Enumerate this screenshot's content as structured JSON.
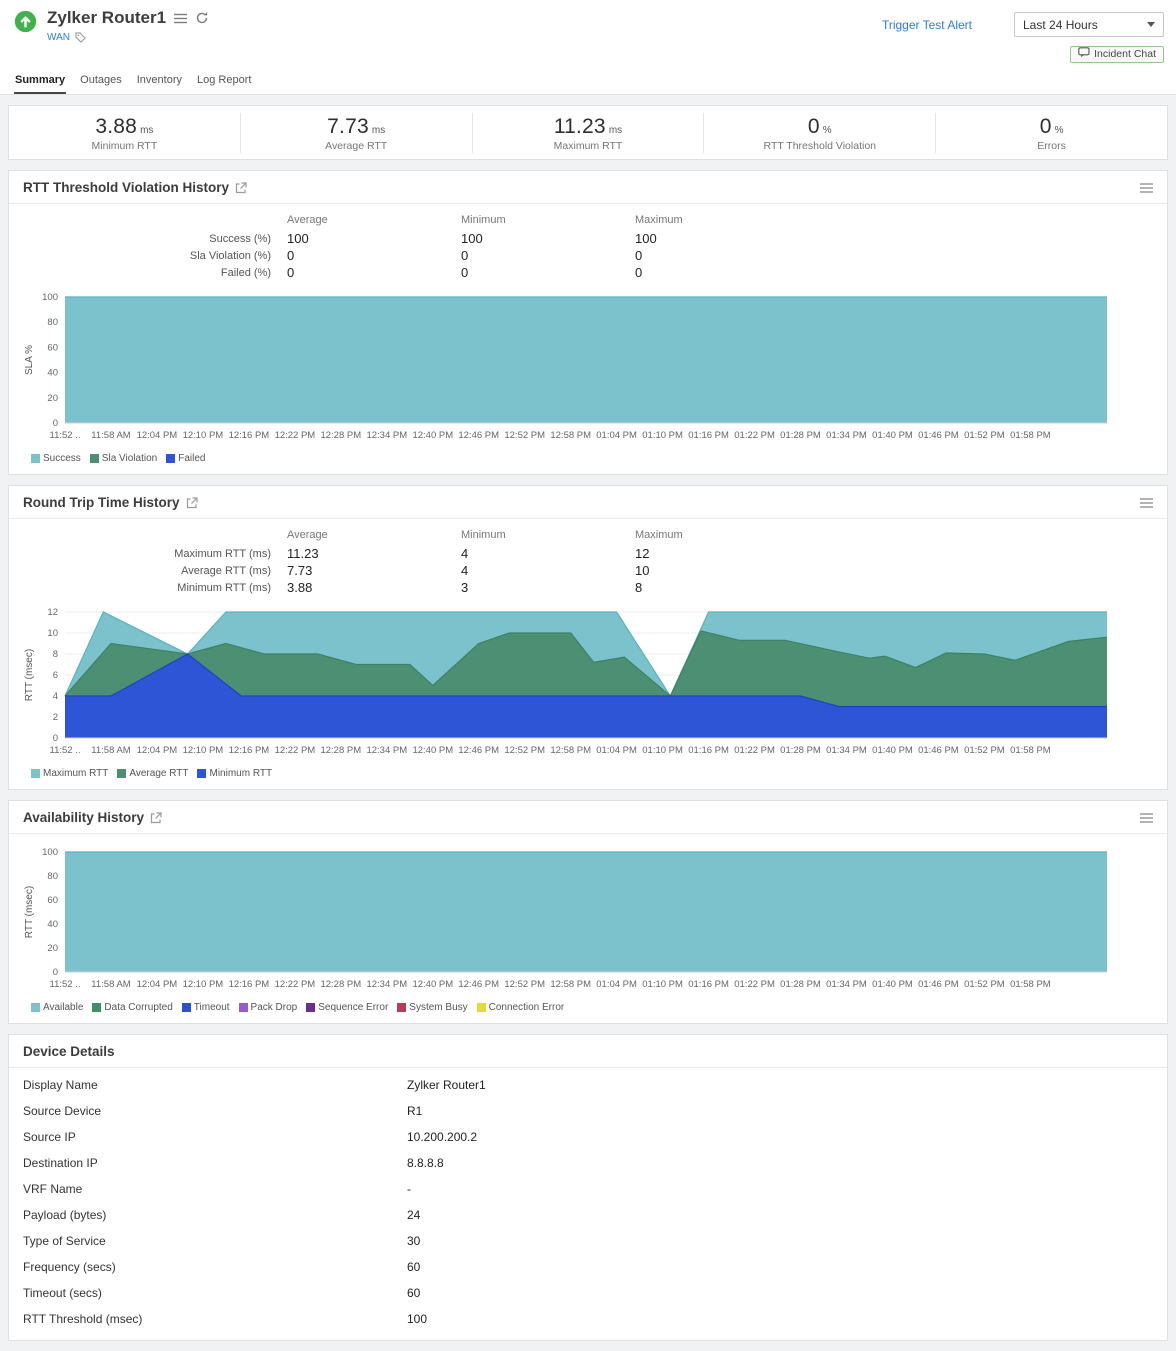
{
  "header": {
    "title": "Zylker Router1",
    "category": "WAN",
    "trigger_link": "Trigger Test Alert",
    "time_range": "Last 24 Hours",
    "incident_chat": "Incident Chat",
    "tabs": [
      "Summary",
      "Outages",
      "Inventory",
      "Log Report"
    ],
    "active_tab": "Summary",
    "status_color": "#3eb24b",
    "link_color": "#2a7de1"
  },
  "stats": [
    {
      "value": "3.88",
      "unit": "ms",
      "label": "Minimum RTT"
    },
    {
      "value": "7.73",
      "unit": "ms",
      "label": "Average RTT"
    },
    {
      "value": "11.23",
      "unit": "ms",
      "label": "Maximum RTT"
    },
    {
      "value": "0",
      "unit": "%",
      "label": "RTT Threshold Violation"
    },
    {
      "value": "0",
      "unit": "%",
      "label": "Errors"
    }
  ],
  "panels": {
    "sla": {
      "title": "RTT Threshold Violation History",
      "table": {
        "columns": [
          "Average",
          "Minimum",
          "Maximum"
        ],
        "rows": [
          {
            "label": "Success (%)",
            "values": [
              "100",
              "100",
              "100"
            ]
          },
          {
            "label": "Sla Violation (%)",
            "values": [
              "0",
              "0",
              "0"
            ]
          },
          {
            "label": "Failed (%)",
            "values": [
              "0",
              "0",
              "0"
            ]
          }
        ]
      }
    },
    "rtt": {
      "title": "Round Trip Time History",
      "table": {
        "columns": [
          "Average",
          "Minimum",
          "Maximum"
        ],
        "rows": [
          {
            "label": "Maximum RTT (ms)",
            "values": [
              "11.23",
              "4",
              "12"
            ]
          },
          {
            "label": "Average RTT (ms)",
            "values": [
              "7.73",
              "4",
              "10"
            ]
          },
          {
            "label": "Minimum RTT (ms)",
            "values": [
              "3.88",
              "3",
              "8"
            ]
          }
        ]
      }
    },
    "availability": {
      "title": "Availability History"
    },
    "device": {
      "title": "Device Details",
      "rows": [
        {
          "label": "Display Name",
          "value": "Zylker Router1"
        },
        {
          "label": "Source Device",
          "value": "R1"
        },
        {
          "label": "Source IP",
          "value": "10.200.200.2"
        },
        {
          "label": "Destination IP",
          "value": "8.8.8.8"
        },
        {
          "label": "VRF Name",
          "value": "-"
        },
        {
          "label": "Payload (bytes)",
          "value": "24"
        },
        {
          "label": "Type of Service",
          "value": "30"
        },
        {
          "label": "Frequency (secs)",
          "value": "60"
        },
        {
          "label": "Timeout (secs)",
          "value": "60"
        },
        {
          "label": "RTT Threshold (msec)",
          "value": "100"
        }
      ]
    }
  },
  "chart_data": [
    {
      "type": "area",
      "title": "RTT Threshold Violation History",
      "ylabel": "SLA %",
      "ylim": [
        0,
        100
      ],
      "yticks": [
        0,
        20,
        40,
        60,
        80,
        100
      ],
      "xlim": [
        0,
        136
      ],
      "grid": true,
      "legend_position": "bottom",
      "xticks": [
        {
          "t": 0,
          "label": "11:52 .."
        },
        {
          "t": 6,
          "label": "11:58 AM"
        },
        {
          "t": 12,
          "label": "12:04 PM"
        },
        {
          "t": 18,
          "label": "12:10 PM"
        },
        {
          "t": 24,
          "label": "12:16 PM"
        },
        {
          "t": 30,
          "label": "12:22 PM"
        },
        {
          "t": 36,
          "label": "12:28 PM"
        },
        {
          "t": 42,
          "label": "12:34 PM"
        },
        {
          "t": 48,
          "label": "12:40 PM"
        },
        {
          "t": 54,
          "label": "12:46 PM"
        },
        {
          "t": 60,
          "label": "12:52 PM"
        },
        {
          "t": 66,
          "label": "12:58 PM"
        },
        {
          "t": 72,
          "label": "01:04 PM"
        },
        {
          "t": 78,
          "label": "01:10 PM"
        },
        {
          "t": 84,
          "label": "01:16 PM"
        },
        {
          "t": 90,
          "label": "01:22 PM"
        },
        {
          "t": 96,
          "label": "01:28 PM"
        },
        {
          "t": 102,
          "label": "01:34 PM"
        },
        {
          "t": 108,
          "label": "01:40 PM"
        },
        {
          "t": 114,
          "label": "01:46 PM"
        },
        {
          "t": 120,
          "label": "01:52 PM"
        },
        {
          "t": 126,
          "label": "01:58 PM"
        }
      ],
      "series": [
        {
          "name": "Success",
          "color": "#7cc2cc",
          "stroke": "#5bb2bd",
          "points": [
            [
              0,
              100
            ],
            [
              136,
              100
            ]
          ]
        },
        {
          "name": "Sla Violation",
          "color": "#4d8f72",
          "stroke": "#3d8163",
          "points": [
            [
              0,
              0
            ],
            [
              136,
              0
            ]
          ]
        },
        {
          "name": "Failed",
          "color": "#2e55d5",
          "stroke": "#2343c0",
          "points": [
            [
              0,
              0
            ],
            [
              136,
              0
            ]
          ]
        }
      ]
    },
    {
      "type": "area",
      "title": "Round Trip Time History",
      "ylabel": "RTT (msec)",
      "ylim": [
        0,
        12
      ],
      "yticks": [
        0,
        2,
        4,
        6,
        8,
        10,
        12
      ],
      "xlim": [
        0,
        136
      ],
      "grid": true,
      "legend_position": "bottom",
      "xticks": [
        {
          "t": 0,
          "label": "11:52 .."
        },
        {
          "t": 6,
          "label": "11:58 AM"
        },
        {
          "t": 12,
          "label": "12:04 PM"
        },
        {
          "t": 18,
          "label": "12:10 PM"
        },
        {
          "t": 24,
          "label": "12:16 PM"
        },
        {
          "t": 30,
          "label": "12:22 PM"
        },
        {
          "t": 36,
          "label": "12:28 PM"
        },
        {
          "t": 42,
          "label": "12:34 PM"
        },
        {
          "t": 48,
          "label": "12:40 PM"
        },
        {
          "t": 54,
          "label": "12:46 PM"
        },
        {
          "t": 60,
          "label": "12:52 PM"
        },
        {
          "t": 66,
          "label": "12:58 PM"
        },
        {
          "t": 72,
          "label": "01:04 PM"
        },
        {
          "t": 78,
          "label": "01:10 PM"
        },
        {
          "t": 84,
          "label": "01:16 PM"
        },
        {
          "t": 90,
          "label": "01:22 PM"
        },
        {
          "t": 96,
          "label": "01:28 PM"
        },
        {
          "t": 102,
          "label": "01:34 PM"
        },
        {
          "t": 108,
          "label": "01:40 PM"
        },
        {
          "t": 114,
          "label": "01:46 PM"
        },
        {
          "t": 120,
          "label": "01:52 PM"
        },
        {
          "t": 126,
          "label": "01:58 PM"
        }
      ],
      "series": [
        {
          "name": "Maximum RTT",
          "color": "#7cc2cc",
          "stroke": "#5bb2bd",
          "points": [
            [
              0,
              4
            ],
            [
              5,
              12
            ],
            [
              16,
              8
            ],
            [
              21,
              12
            ],
            [
              72,
              12
            ],
            [
              79,
              4
            ],
            [
              84,
              12
            ],
            [
              136,
              12
            ]
          ]
        },
        {
          "name": "Average RTT",
          "color": "#4d8f72",
          "stroke": "#3d8163",
          "points": [
            [
              0,
              4
            ],
            [
              6,
              9
            ],
            [
              16,
              8
            ],
            [
              21,
              9
            ],
            [
              26,
              8
            ],
            [
              33,
              8
            ],
            [
              38,
              7
            ],
            [
              45,
              7
            ],
            [
              48,
              5
            ],
            [
              54,
              9
            ],
            [
              58,
              10
            ],
            [
              66,
              10
            ],
            [
              69,
              7.2
            ],
            [
              73,
              7.7
            ],
            [
              79,
              4
            ],
            [
              83,
              10.2
            ],
            [
              88,
              9.3
            ],
            [
              94,
              9.3
            ],
            [
              101,
              8.2
            ],
            [
              105,
              7.6
            ],
            [
              107,
              7.8
            ],
            [
              111,
              6.7
            ],
            [
              115,
              8.1
            ],
            [
              120,
              8
            ],
            [
              124,
              7.4
            ],
            [
              131,
              9.2
            ],
            [
              136,
              9.6
            ]
          ]
        },
        {
          "name": "Minimum RTT",
          "color": "#2e55d5",
          "stroke": "#2343c0",
          "points": [
            [
              0,
              4
            ],
            [
              6,
              4
            ],
            [
              16,
              8
            ],
            [
              23,
              4
            ],
            [
              96,
              4
            ],
            [
              101,
              3
            ],
            [
              136,
              3
            ]
          ]
        }
      ]
    },
    {
      "type": "area",
      "title": "Availability History",
      "ylabel": "RTT (msec)",
      "ylim": [
        0,
        100
      ],
      "yticks": [
        0,
        20,
        40,
        60,
        80,
        100
      ],
      "xlim": [
        0,
        136
      ],
      "grid": true,
      "legend_position": "bottom",
      "xticks": [
        {
          "t": 0,
          "label": "11:52 .."
        },
        {
          "t": 6,
          "label": "11:58 AM"
        },
        {
          "t": 12,
          "label": "12:04 PM"
        },
        {
          "t": 18,
          "label": "12:10 PM"
        },
        {
          "t": 24,
          "label": "12:16 PM"
        },
        {
          "t": 30,
          "label": "12:22 PM"
        },
        {
          "t": 36,
          "label": "12:28 PM"
        },
        {
          "t": 42,
          "label": "12:34 PM"
        },
        {
          "t": 48,
          "label": "12:40 PM"
        },
        {
          "t": 54,
          "label": "12:46 PM"
        },
        {
          "t": 60,
          "label": "12:52 PM"
        },
        {
          "t": 66,
          "label": "12:58 PM"
        },
        {
          "t": 72,
          "label": "01:04 PM"
        },
        {
          "t": 78,
          "label": "01:10 PM"
        },
        {
          "t": 84,
          "label": "01:16 PM"
        },
        {
          "t": 90,
          "label": "01:22 PM"
        },
        {
          "t": 96,
          "label": "01:28 PM"
        },
        {
          "t": 102,
          "label": "01:34 PM"
        },
        {
          "t": 108,
          "label": "01:40 PM"
        },
        {
          "t": 114,
          "label": "01:46 PM"
        },
        {
          "t": 120,
          "label": "01:52 PM"
        },
        {
          "t": 126,
          "label": "01:58 PM"
        }
      ],
      "series": [
        {
          "name": "Available",
          "color": "#7cc2cc",
          "stroke": "#5bb2bd",
          "points": [
            [
              0,
              100
            ],
            [
              136,
              100
            ]
          ]
        },
        {
          "name": "Data Corrupted",
          "color": "#3e8e68",
          "stroke": "#3e8e68",
          "points": [
            [
              0,
              0
            ],
            [
              136,
              0
            ]
          ]
        },
        {
          "name": "Timeout",
          "color": "#2b50d8",
          "stroke": "#2b50d8",
          "points": [
            [
              0,
              0
            ],
            [
              136,
              0
            ]
          ]
        },
        {
          "name": "Pack Drop",
          "color": "#9b59d0",
          "stroke": "#9b59d0",
          "points": [
            [
              0,
              0
            ],
            [
              136,
              0
            ]
          ]
        },
        {
          "name": "Sequence Error",
          "color": "#6b2d8e",
          "stroke": "#6b2d8e",
          "points": [
            [
              0,
              0
            ],
            [
              136,
              0
            ]
          ]
        },
        {
          "name": "System Busy",
          "color": "#b93a56",
          "stroke": "#b93a56",
          "points": [
            [
              0,
              0
            ],
            [
              136,
              0
            ]
          ]
        },
        {
          "name": "Connection Error",
          "color": "#e3d93a",
          "stroke": "#e3d93a",
          "points": [
            [
              0,
              0
            ],
            [
              136,
              0
            ]
          ]
        }
      ]
    }
  ]
}
